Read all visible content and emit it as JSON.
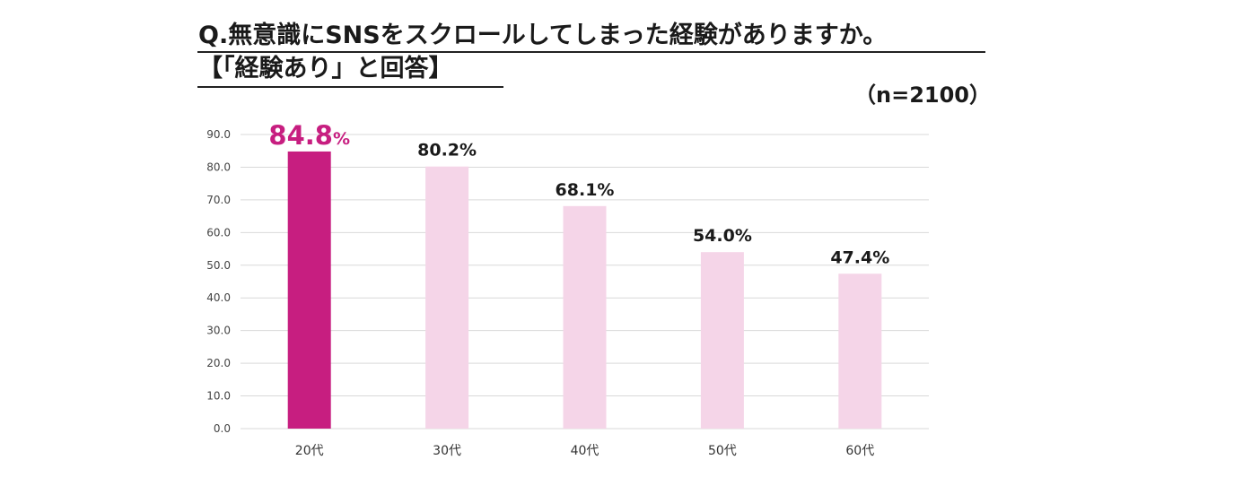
{
  "header": {
    "title_line1": "Q.無意識にSNSをスクロールしてしまった経験がありますか。",
    "title_line2": "【「経験あり」と回答】",
    "sample_size": "（n=2100）"
  },
  "colors": {
    "highlight_bar": "#c71e80",
    "other_bar": "#f5d5e8",
    "highlight_label": "#c71e80",
    "grid": "#d9d9d9"
  },
  "chart_data": {
    "type": "bar",
    "categories": [
      "20代",
      "30代",
      "40代",
      "50代",
      "60代"
    ],
    "values": [
      84.8,
      80.2,
      68.1,
      54.0,
      47.4
    ],
    "value_labels": [
      "84.8%",
      "80.2%",
      "68.1%",
      "54.0%",
      "47.4%"
    ],
    "highlight_index": 0,
    "title": "Q.無意識にSNSをスクロールしてしまった経験がありますか。【「経験あり」と回答】",
    "xlabel": "",
    "ylabel": "",
    "ylim": [
      0,
      90
    ],
    "yticks": [
      0,
      10,
      20,
      30,
      40,
      50,
      60,
      70,
      80,
      90
    ],
    "ytick_labels": [
      "0.0",
      "10.0",
      "20.0",
      "30.0",
      "40.0",
      "50.0",
      "60.0",
      "70.0",
      "80.0",
      "90.0"
    ],
    "grid": true,
    "legend": "none"
  }
}
